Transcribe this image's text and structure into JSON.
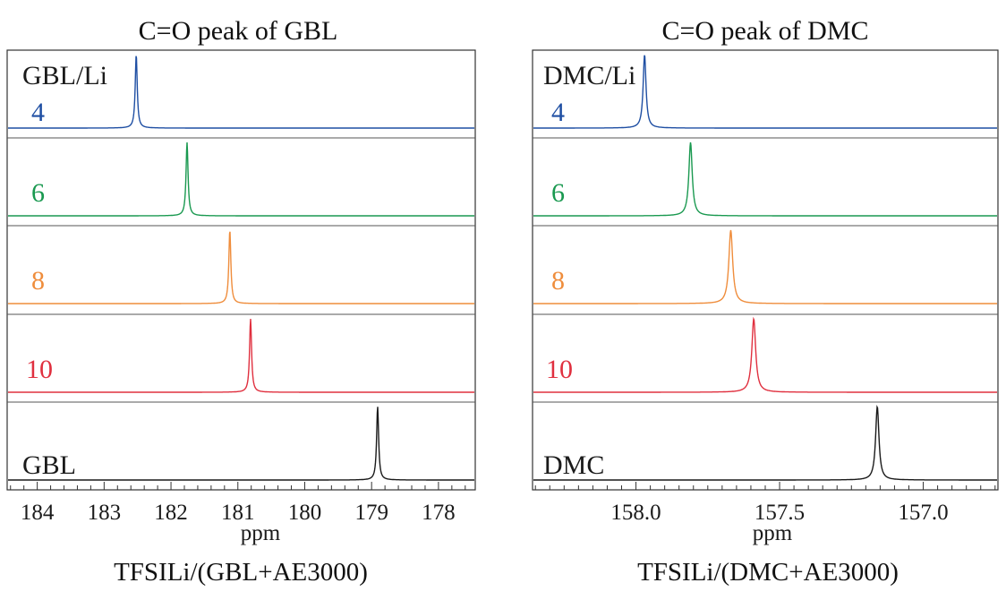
{
  "colors": {
    "4": "#1f4fa3",
    "6": "#1a9950",
    "8": "#ef8d3c",
    "10": "#e0303f",
    "neat": "#1a1a1a"
  },
  "chart_data": [
    {
      "type": "line",
      "title": "C=O peak of GBL",
      "xlabel": "ppm",
      "caption": "TFSILi/(GBL+AE3000)",
      "xlim": [
        184.45,
        177.45
      ],
      "x_reversed": true,
      "xticks": [
        184,
        183,
        182,
        181,
        180,
        179,
        178
      ],
      "ratio_label": "GBL/Li",
      "series": [
        {
          "label": "4",
          "color_key": "4",
          "peak_ppm": 182.52,
          "width_ppm": 0.018
        },
        {
          "label": "6",
          "color_key": "6",
          "peak_ppm": 181.76,
          "width_ppm": 0.018
        },
        {
          "label": "8",
          "color_key": "8",
          "peak_ppm": 181.12,
          "width_ppm": 0.018
        },
        {
          "label": "10",
          "color_key": "10",
          "peak_ppm": 180.81,
          "width_ppm": 0.018
        },
        {
          "label": "GBL",
          "color_key": "neat",
          "peak_ppm": 178.91,
          "width_ppm": 0.018
        }
      ]
    },
    {
      "type": "line",
      "title": "C=O peak of DMC",
      "xlabel": "ppm",
      "caption": "TFSILi/(DMC+AE3000)",
      "xlim": [
        158.36,
        156.74
      ],
      "x_reversed": true,
      "xticks": [
        158.0,
        157.5,
        157.0
      ],
      "ratio_label": "DMC/Li",
      "series": [
        {
          "label": "4",
          "color_key": "4",
          "peak_ppm": 157.97,
          "width_ppm": 0.006
        },
        {
          "label": "6",
          "color_key": "6",
          "peak_ppm": 157.81,
          "width_ppm": 0.007
        },
        {
          "label": "8",
          "color_key": "8",
          "peak_ppm": 157.67,
          "width_ppm": 0.008
        },
        {
          "label": "10",
          "color_key": "10",
          "peak_ppm": 157.59,
          "width_ppm": 0.008
        },
        {
          "label": "DMC",
          "color_key": "neat",
          "peak_ppm": 157.16,
          "width_ppm": 0.007
        }
      ]
    }
  ]
}
